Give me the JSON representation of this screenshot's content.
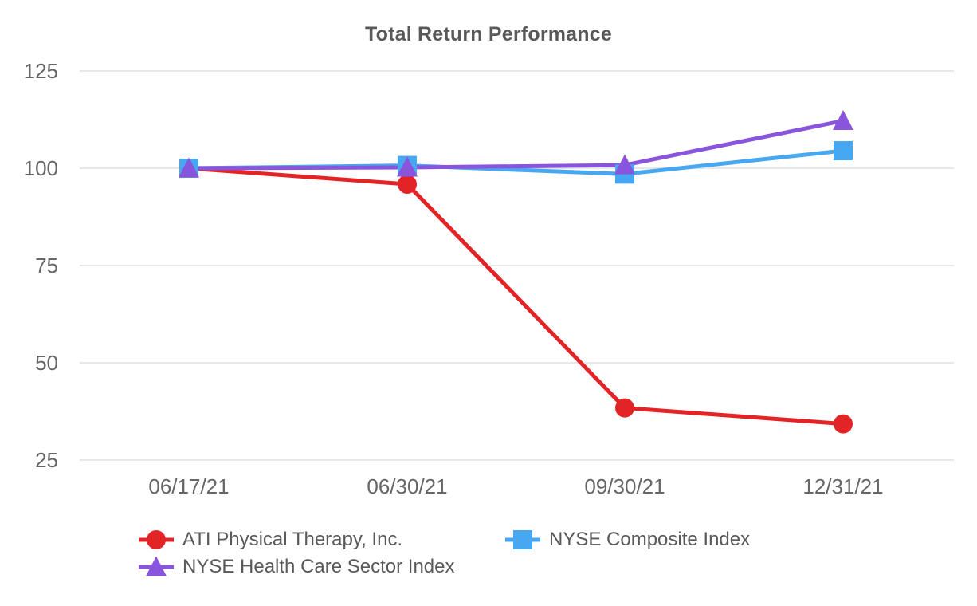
{
  "title": "Total Return Performance",
  "chart_data": {
    "type": "line",
    "title": "Total Return Performance",
    "categories": [
      "06/17/21",
      "06/30/21",
      "09/30/21",
      "12/31/21"
    ],
    "series": [
      {
        "name": "ATI Physical Therapy, Inc.",
        "marker": "circle",
        "color": "#e32427",
        "values": [
          100,
          95.9,
          38.4,
          34.3
        ]
      },
      {
        "name": "NYSE Composite Index",
        "marker": "square",
        "color": "#47a7f0",
        "values": [
          100,
          100.7,
          98.5,
          104.5
        ]
      },
      {
        "name": "NYSE Health Care Sector Index",
        "marker": "triangle",
        "color": "#8955dd",
        "values": [
          100,
          100.2,
          100.8,
          112.2
        ]
      }
    ],
    "xlabel": "",
    "ylabel": "",
    "yticks": [
      25,
      50,
      75,
      100,
      125
    ],
    "ylim": [
      20,
      130
    ],
    "grid": true,
    "legend_position": "bottom",
    "legend_rows": [
      [
        0,
        1
      ],
      [
        2
      ]
    ]
  },
  "colors": {
    "background": "#ffffff",
    "gridline": "#e8e8e8",
    "title_text": "#595959",
    "tick_text": "#666666",
    "legend_text": "#595959"
  }
}
